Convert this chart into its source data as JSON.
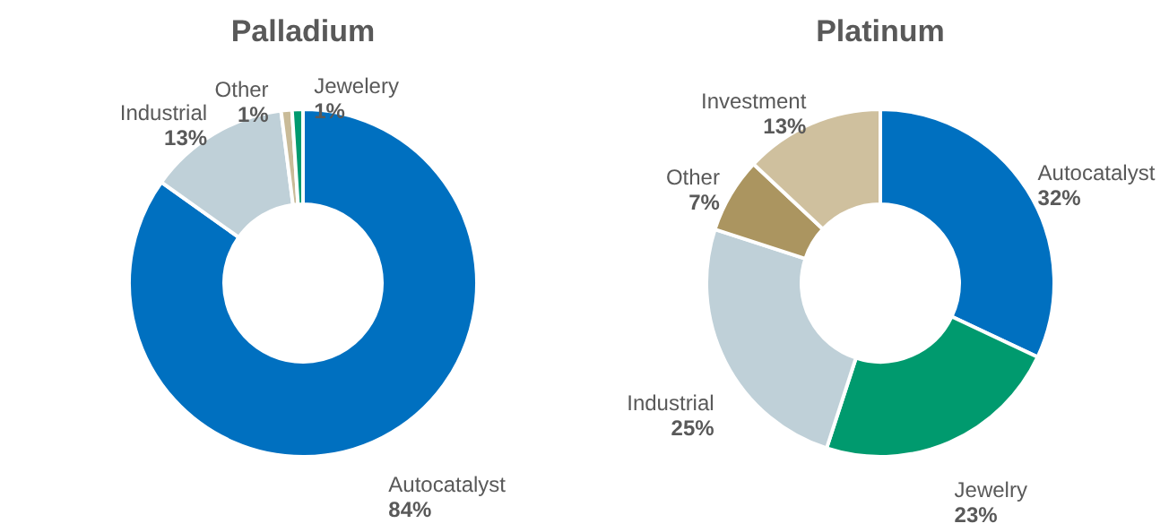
{
  "chart_data": [
    {
      "type": "donut",
      "title": "Palladium",
      "categories": [
        "Autocatalyst",
        "Industrial",
        "Other",
        "Jewelery"
      ],
      "values": [
        84,
        13,
        1,
        1
      ],
      "value_labels": [
        "84%",
        "13%",
        "1%",
        "1%"
      ],
      "colors": [
        "#0070c0",
        "#bfd0d8",
        "#c9bb98",
        "#009a6e"
      ]
    },
    {
      "type": "donut",
      "title": "Platinum",
      "categories": [
        "Autocatalyst",
        "Jewelry",
        "Industrial",
        "Other",
        "Investment"
      ],
      "values": [
        32,
        23,
        25,
        7,
        13
      ],
      "value_labels": [
        "32%",
        "23%",
        "25%",
        "7%",
        "13%"
      ],
      "colors": [
        "#0070c0",
        "#009a6e",
        "#bfd0d8",
        "#ab9560",
        "#cfc09e"
      ]
    }
  ]
}
